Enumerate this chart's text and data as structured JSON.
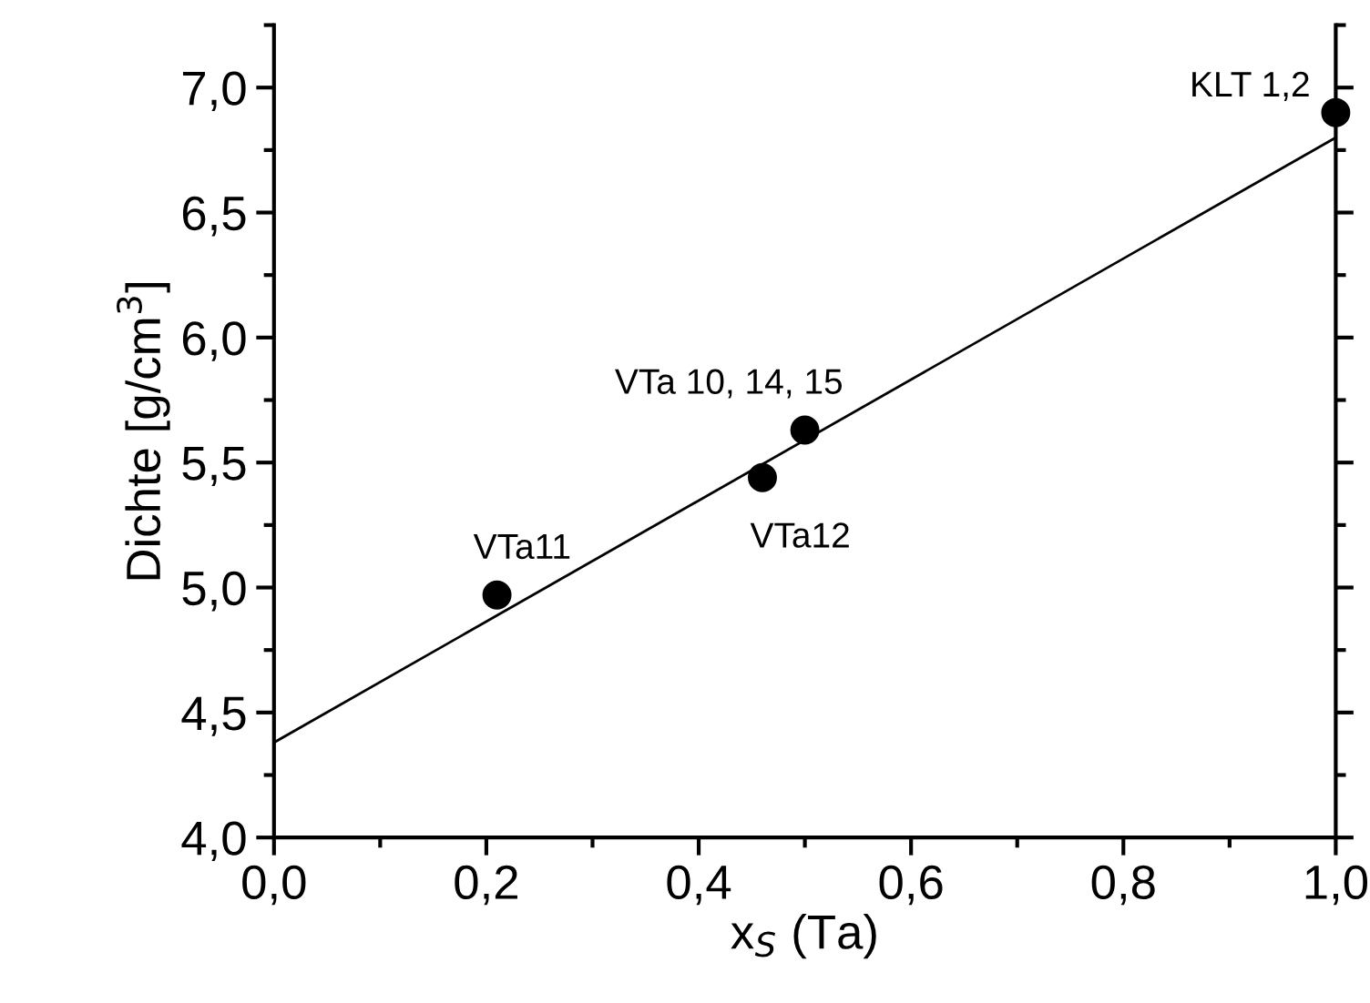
{
  "chart_data": {
    "type": "scatter",
    "xlabel": "x$_{S}$ (Ta)",
    "ylabel": "Dichte [g/cm$^{3}$]",
    "series": [
      {
        "color": "#000000",
        "marker": "circle",
        "x": [
          0.21,
          0.46,
          0.5,
          1.0
        ],
        "values": [
          4.97,
          5.44,
          5.63,
          6.9
        ]
      },
      {
        "type": "line",
        "color": "#000000",
        "marker": "none",
        "x": [
          0.0,
          1.0
        ],
        "values": [
          4.38,
          6.8
        ]
      }
    ],
    "annotations": [
      {
        "text": "VTa11",
        "x": 0.21,
        "y": 4.97
      },
      {
        "text": "VTa12",
        "x": 0.46,
        "y": 5.44
      },
      {
        "text": "VTa 10, 14, 15",
        "x": 0.5,
        "y": 5.63
      },
      {
        "text": "KLT 1,2",
        "x": 1.0,
        "y": 6.9
      }
    ],
    "xlim": [
      0.0,
      1.0
    ],
    "ylim": [
      4.0,
      7.25
    ],
    "xticks": [
      {
        "value": 0.0,
        "label": "0,0"
      },
      {
        "value": 0.1,
        "label": null
      },
      {
        "value": 0.2,
        "label": "0,2"
      },
      {
        "value": 0.3,
        "label": null
      },
      {
        "value": 0.4,
        "label": "0,4"
      },
      {
        "value": 0.5,
        "label": null
      },
      {
        "value": 0.6,
        "label": "0,6"
      },
      {
        "value": 0.7,
        "label": null
      },
      {
        "value": 0.8,
        "label": "0,8"
      },
      {
        "value": 0.9,
        "label": null
      },
      {
        "value": 1.0,
        "label": "1,0"
      }
    ],
    "yticks": [
      {
        "value": 4.0,
        "label": "4,0"
      },
      {
        "value": 4.25,
        "label": null
      },
      {
        "value": 4.5,
        "label": "4,5"
      },
      {
        "value": 4.75,
        "label": null
      },
      {
        "value": 5.0,
        "label": "5,0"
      },
      {
        "value": 5.25,
        "label": null
      },
      {
        "value": 5.5,
        "label": "5,5"
      },
      {
        "value": 5.75,
        "label": null
      },
      {
        "value": 6.0,
        "label": "6,0"
      },
      {
        "value": 6.25,
        "label": null
      },
      {
        "value": 6.5,
        "label": "6,5"
      },
      {
        "value": 6.75,
        "label": null
      },
      {
        "value": 7.0,
        "label": "7,0"
      },
      {
        "value": 7.25,
        "label": null
      }
    ],
    "grid": false,
    "legend": false
  }
}
